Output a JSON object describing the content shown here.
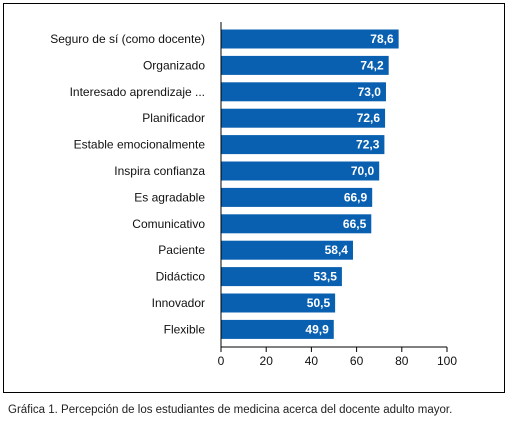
{
  "chart_data": {
    "type": "bar",
    "orientation": "horizontal",
    "categories": [
      "Seguro de sí (como docente)",
      "Organizado",
      "Interesado aprendizaje ...",
      "Planificador",
      "Estable emocionalmente",
      "Inspira confianza",
      "Es agradable",
      "Comunicativo",
      "Paciente",
      "Didáctico",
      "Innovador",
      "Flexible"
    ],
    "values": [
      78.6,
      74.2,
      73.0,
      72.6,
      72.3,
      70.0,
      66.9,
      66.5,
      58.4,
      53.5,
      50.5,
      49.9
    ],
    "value_labels": [
      "78,6",
      "74,2",
      "73,0",
      "72,6",
      "72,3",
      "70,0",
      "66,9",
      "66,5",
      "58,4",
      "53,5",
      "50,5",
      "49,9"
    ],
    "xticks": [
      "0",
      "20",
      "40",
      "60",
      "80",
      "100"
    ],
    "xlim": [
      0,
      100
    ],
    "bar_color": "#0a60b0",
    "grid": false,
    "title": "",
    "xlabel": "",
    "ylabel": ""
  },
  "caption": "Gráfica 1. Percepción de los estudiantes de medicina acerca del docente adulto mayor."
}
